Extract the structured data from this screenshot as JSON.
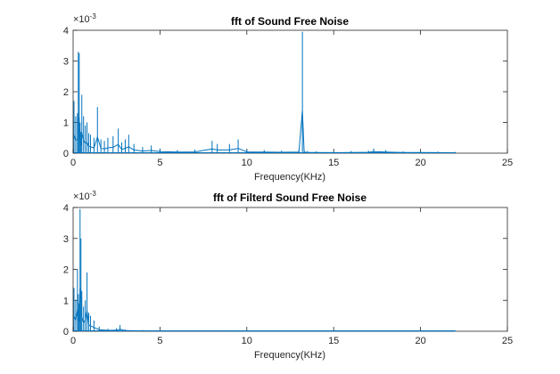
{
  "chart_data": [
    {
      "type": "line",
      "title": "fft of Sound Free Noise",
      "xlabel": "Frequency(KHz)",
      "ylabel": "",
      "xlim": [
        0,
        25
      ],
      "ylim": [
        0,
        4
      ],
      "y_exponent_base": "×10",
      "y_exponent_power": "-3",
      "xticks": [
        "0",
        "5",
        "10",
        "15",
        "20",
        "25"
      ],
      "yticks": [
        "0",
        "1",
        "2",
        "3",
        "4"
      ],
      "grid": false,
      "line_color": "#0072BD",
      "series": [
        {
          "x": [
            0.05,
            0.15,
            0.25,
            0.3,
            0.35,
            0.4,
            0.45,
            0.5,
            0.6,
            0.7,
            0.8,
            0.9,
            1.0,
            1.2,
            1.4,
            1.6,
            1.8,
            2.0,
            2.3,
            2.6,
            2.8,
            3.0,
            3.2,
            3.5,
            4.0,
            4.5,
            5.0,
            6.0,
            7.0,
            8.0,
            8.3,
            9.0,
            9.5,
            10.0,
            11.0,
            12.0,
            13.0,
            13.2,
            13.3,
            13.5,
            14.0,
            15.0,
            16.0,
            17.0,
            17.3,
            18.0,
            19.0,
            20.0,
            21.0,
            22.0
          ],
          "values": [
            1.7,
            1.2,
            1.3,
            3.3,
            3.25,
            1.0,
            0.7,
            1.9,
            1.2,
            0.9,
            1.0,
            0.65,
            0.6,
            0.5,
            1.5,
            0.45,
            0.4,
            0.5,
            0.55,
            0.8,
            0.35,
            0.45,
            0.6,
            0.3,
            0.2,
            0.25,
            0.15,
            0.1,
            0.12,
            0.4,
            0.3,
            0.3,
            0.45,
            0.12,
            0.1,
            0.08,
            0.1,
            3.95,
            0.1,
            0.07,
            0.06,
            0.05,
            0.07,
            0.08,
            0.15,
            0.1,
            0.06,
            0.06,
            0.05,
            0.04
          ]
        }
      ]
    },
    {
      "type": "line",
      "title": "fft of Filterd Sound Free Noise",
      "xlabel": "Frequency(KHz)",
      "ylabel": "",
      "xlim": [
        0,
        25
      ],
      "ylim": [
        0,
        4
      ],
      "y_exponent_base": "×10",
      "y_exponent_power": "-3",
      "xticks": [
        "0",
        "5",
        "10",
        "15",
        "20",
        "25"
      ],
      "yticks": [
        "0",
        "1",
        "2",
        "3",
        "4"
      ],
      "grid": false,
      "line_color": "#0072BD",
      "series": [
        {
          "x": [
            0.05,
            0.15,
            0.25,
            0.3,
            0.35,
            0.4,
            0.45,
            0.5,
            0.6,
            0.7,
            0.8,
            0.9,
            1.0,
            1.2,
            1.5,
            2.0,
            2.5,
            2.7,
            3.0,
            4.0,
            5.0,
            7.0,
            10.0,
            13.0,
            16.0,
            19.0,
            22.0
          ],
          "values": [
            1.4,
            1.0,
            2.0,
            1.2,
            0.9,
            3.95,
            3.0,
            1.3,
            0.8,
            1.0,
            1.9,
            0.6,
            0.5,
            0.35,
            0.15,
            0.08,
            0.1,
            0.2,
            0.06,
            0.04,
            0.03,
            0.03,
            0.025,
            0.025,
            0.02,
            0.02,
            0.02
          ]
        }
      ]
    }
  ]
}
